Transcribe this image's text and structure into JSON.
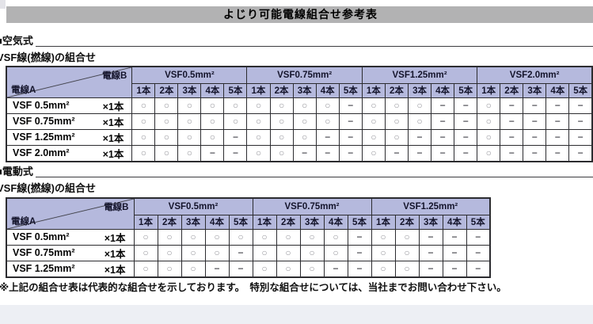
{
  "page": {
    "title": "よじり可能電線組合せ参考表",
    "footnote": "※上記の組合せ表は代表的な組合せを示しております。　特別な組合せについては、当社までお問い合わせ下さい。"
  },
  "colors": {
    "title_bar": "#b2b2b3",
    "table_header_fill": "#b5b9dd",
    "bottom_band": "#edeff4"
  },
  "symbols": {
    "compatible": "○",
    "not_compatible": "−"
  },
  "tables": [
    {
      "section": "■空気式",
      "subtitle": "VSF線(撚線)の組合せ",
      "axis": {
        "b": "電線B",
        "a": "電線A"
      },
      "col_groups": [
        {
          "label": "VSF0.5mm²",
          "cols": [
            "1本",
            "2本",
            "3本",
            "4本",
            "5本"
          ]
        },
        {
          "label": "VSF0.75mm²",
          "cols": [
            "1本",
            "2本",
            "3本",
            "4本",
            "5本"
          ]
        },
        {
          "label": "VSF1.25mm²",
          "cols": [
            "1本",
            "2本",
            "3本",
            "4本",
            "5本"
          ]
        },
        {
          "label": "VSF2.0mm²",
          "cols": [
            "1本",
            "2本",
            "3本",
            "4本",
            "5本"
          ]
        }
      ],
      "rows": [
        {
          "label": "VSF 0.5mm²",
          "qty": "×1本",
          "cells": [
            "○",
            "○",
            "○",
            "○",
            "○",
            "○",
            "○",
            "○",
            "○",
            "−",
            "○",
            "○",
            "○",
            "−",
            "−",
            "○",
            "−",
            "−",
            "−",
            "−"
          ]
        },
        {
          "label": "VSF 0.75mm²",
          "qty": "×1本",
          "cells": [
            "○",
            "○",
            "○",
            "○",
            "○",
            "○",
            "○",
            "○",
            "○",
            "−",
            "○",
            "○",
            "○",
            "−",
            "−",
            "○",
            "−",
            "−",
            "−",
            "−"
          ]
        },
        {
          "label": "VSF 1.25mm²",
          "qty": "×1本",
          "cells": [
            "○",
            "○",
            "○",
            "○",
            "−",
            "○",
            "○",
            "○",
            "−",
            "−",
            "○",
            "○",
            "−",
            "−",
            "−",
            "○",
            "−",
            "−",
            "−",
            "−"
          ]
        },
        {
          "label": "VSF 2.0mm²",
          "qty": "×1本",
          "cells": [
            "○",
            "○",
            "○",
            "−",
            "−",
            "○",
            "○",
            "−",
            "−",
            "−",
            "○",
            "−",
            "−",
            "−",
            "−",
            "○",
            "−",
            "−",
            "−",
            "−"
          ]
        }
      ]
    },
    {
      "section": "■電動式",
      "subtitle": "VSF線(撚線)の組合せ",
      "axis": {
        "b": "電線B",
        "a": "電線A"
      },
      "col_groups": [
        {
          "label": "VSF0.5mm²",
          "cols": [
            "1本",
            "2本",
            "3本",
            "4本",
            "5本"
          ]
        },
        {
          "label": "VSF0.75mm²",
          "cols": [
            "1本",
            "2本",
            "3本",
            "4本",
            "5本"
          ]
        },
        {
          "label": "VSF1.25mm²",
          "cols": [
            "1本",
            "2本",
            "3本",
            "4本",
            "5本"
          ]
        }
      ],
      "rows": [
        {
          "label": "VSF 0.5mm²",
          "qty": "×1本",
          "cells": [
            "○",
            "○",
            "○",
            "○",
            "○",
            "○",
            "○",
            "○",
            "○",
            "−",
            "○",
            "○",
            "−",
            "−",
            "−"
          ]
        },
        {
          "label": "VSF 0.75mm²",
          "qty": "×1本",
          "cells": [
            "○",
            "○",
            "○",
            "○",
            "−",
            "○",
            "○",
            "○",
            "○",
            "−",
            "○",
            "○",
            "−",
            "−",
            "−"
          ]
        },
        {
          "label": "VSF 1.25mm²",
          "qty": "×1本",
          "cells": [
            "○",
            "○",
            "○",
            "−",
            "−",
            "○",
            "○",
            "○",
            "−",
            "−",
            "○",
            "○",
            "−",
            "−",
            "−"
          ]
        }
      ]
    }
  ]
}
